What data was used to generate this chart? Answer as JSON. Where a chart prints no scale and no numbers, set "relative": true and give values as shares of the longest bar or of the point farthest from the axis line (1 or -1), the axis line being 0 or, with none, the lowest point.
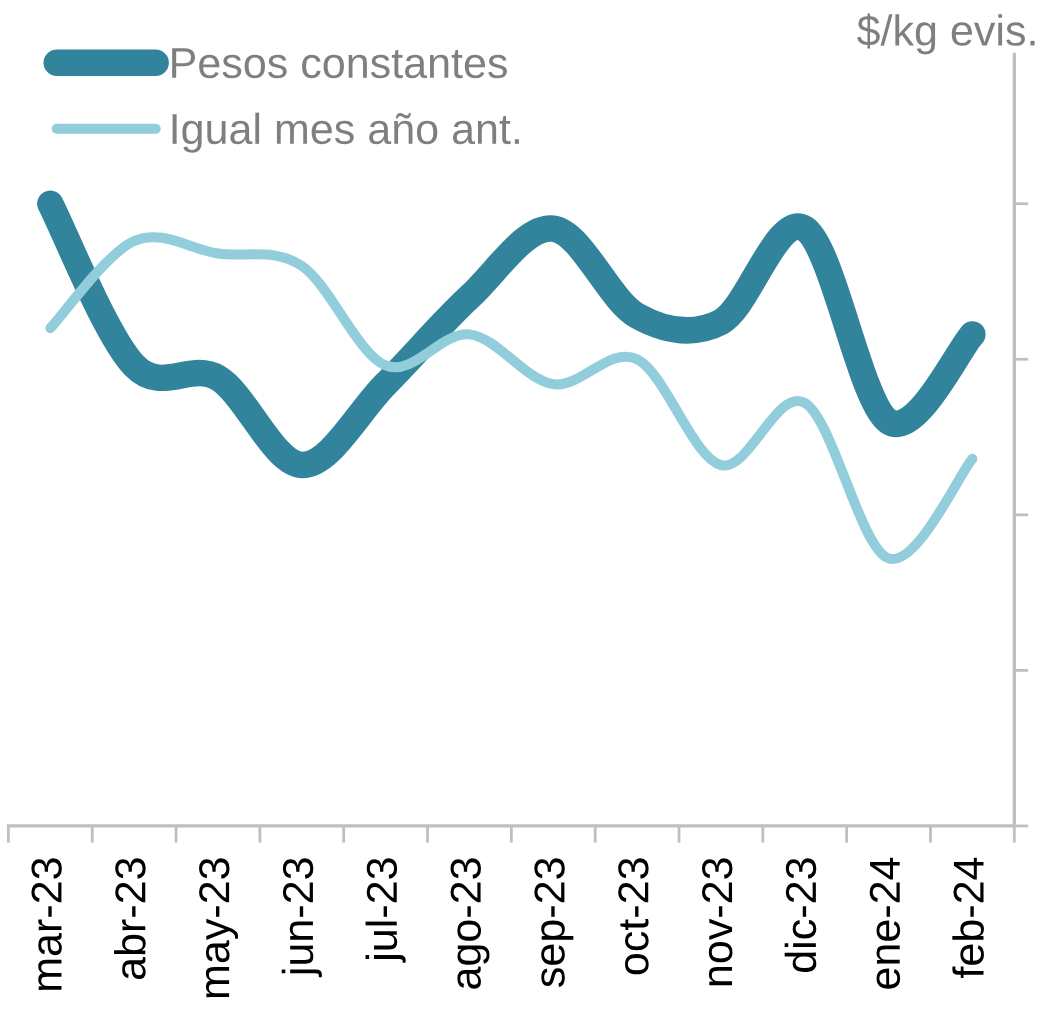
{
  "chart_data": {
    "type": "line",
    "relative": true,
    "ylabel": "$/kg evis.",
    "categories": [
      "mar-23",
      "abr-23",
      "may-23",
      "jun-23",
      "jul-23",
      "ago-23",
      "sep-23",
      "oct-23",
      "nov-23",
      "dic-23",
      "ene-24",
      "feb-24"
    ],
    "series": [
      {
        "name": "Pesos constantes",
        "color": "#31849b",
        "values": [
          1.0,
          0.74,
          0.72,
          0.58,
          0.71,
          0.85,
          0.96,
          0.82,
          0.81,
          0.96,
          0.65,
          0.79
        ]
      },
      {
        "name": "Igual mes año ant.",
        "color": "#92cddc",
        "values": [
          0.8,
          0.94,
          0.92,
          0.9,
          0.74,
          0.79,
          0.71,
          0.75,
          0.58,
          0.68,
          0.43,
          0.59
        ]
      }
    ],
    "legend": "top left",
    "tick_labels": "x",
    "line_style": "solid"
  }
}
